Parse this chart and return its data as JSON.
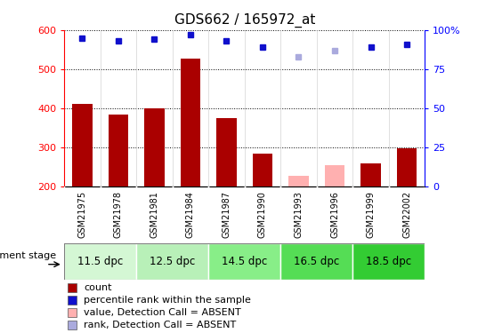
{
  "title": "GDS662 / 165972_at",
  "samples": [
    "GSM21975",
    "GSM21978",
    "GSM21981",
    "GSM21984",
    "GSM21987",
    "GSM21990",
    "GSM21993",
    "GSM21996",
    "GSM21999",
    "GSM22002"
  ],
  "bar_values": [
    410,
    383,
    400,
    527,
    375,
    283,
    null,
    null,
    260,
    298
  ],
  "bar_absent_values": [
    null,
    null,
    null,
    null,
    null,
    null,
    228,
    255,
    null,
    null
  ],
  "rank_values": [
    95,
    93,
    94,
    97,
    93,
    89,
    null,
    null,
    89,
    91
  ],
  "rank_absent_values": [
    null,
    null,
    null,
    null,
    null,
    null,
    83,
    87,
    null,
    null
  ],
  "bar_color": "#aa0000",
  "bar_absent_color": "#ffb0b0",
  "rank_color": "#1010cc",
  "rank_absent_color": "#aaaadd",
  "ylim_left": [
    200,
    600
  ],
  "ylim_right": [
    0,
    100
  ],
  "yticks_left": [
    200,
    300,
    400,
    500,
    600
  ],
  "yticks_right": [
    0,
    25,
    50,
    75,
    100
  ],
  "dev_stages": [
    {
      "label": "11.5 dpc",
      "start": 0,
      "end": 1,
      "color": "#d4f7d4"
    },
    {
      "label": "12.5 dpc",
      "start": 2,
      "end": 3,
      "color": "#b8f0b8"
    },
    {
      "label": "14.5 dpc",
      "start": 4,
      "end": 5,
      "color": "#88ee88"
    },
    {
      "label": "16.5 dpc",
      "start": 6,
      "end": 7,
      "color": "#55dd55"
    },
    {
      "label": "18.5 dpc",
      "start": 8,
      "end": 9,
      "color": "#33cc33"
    }
  ],
  "legend_items": [
    {
      "label": "count",
      "color": "#aa0000"
    },
    {
      "label": "percentile rank within the sample",
      "color": "#1010cc"
    },
    {
      "label": "value, Detection Call = ABSENT",
      "color": "#ffb0b0"
    },
    {
      "label": "rank, Detection Call = ABSENT",
      "color": "#aaaadd"
    }
  ],
  "bar_width": 0.55,
  "dev_label": "development stage"
}
